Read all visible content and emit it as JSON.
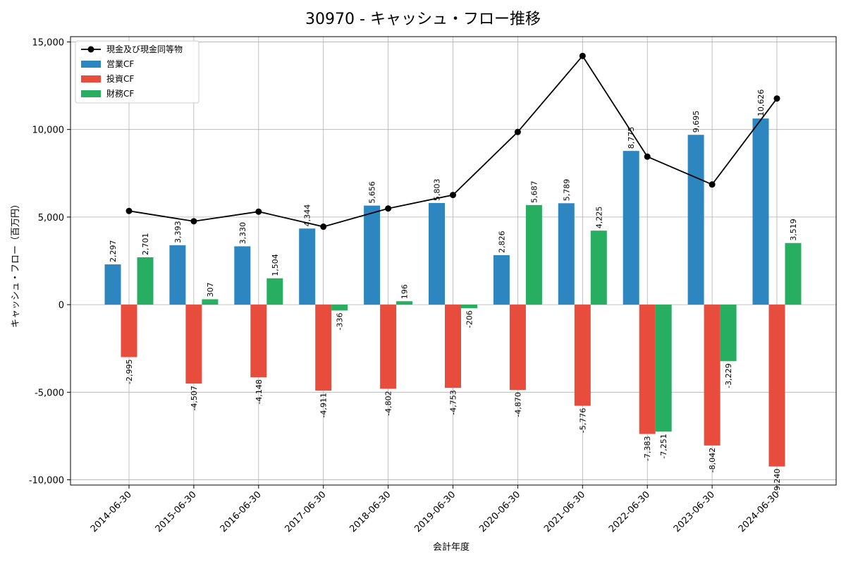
{
  "chart_data": {
    "type": "bar",
    "title": "30970 - キャッシュ・フロー推移",
    "xlabel": "会計年度",
    "ylabel": "キャッシュ・フロー（百万円）",
    "ylim": [
      -10300,
      15300
    ],
    "yticks": [
      -10000,
      -5000,
      0,
      5000,
      10000,
      15000
    ],
    "ytick_labels": [
      "-10,000",
      "-5,000",
      "0",
      "5,000",
      "10,000",
      "15,000"
    ],
    "grid": true,
    "legend_position": "top-left",
    "categories": [
      "2014-06-30",
      "2015-06-30",
      "2016-06-30",
      "2017-06-30",
      "2018-06-30",
      "2019-06-30",
      "2020-06-30",
      "2021-06-30",
      "2022-06-30",
      "2023-06-30",
      "2024-06-30"
    ],
    "series": [
      {
        "name": "営業CF",
        "kind": "bar",
        "color": "#2e86c1",
        "values": [
          2297,
          3393,
          3330,
          4344,
          5656,
          5803,
          2826,
          5789,
          8775,
          9695,
          10626
        ],
        "labels": [
          "2,297",
          "3,393",
          "3,330",
          "4,344",
          "5,656",
          "5,803",
          "2,826",
          "5,789",
          "8,775",
          "9,695",
          "10,626"
        ]
      },
      {
        "name": "投資CF",
        "kind": "bar",
        "color": "#e74c3c",
        "values": [
          -2995,
          -4507,
          -4148,
          -4911,
          -4802,
          -4753,
          -4870,
          -5776,
          -7383,
          -8042,
          -9240
        ],
        "labels": [
          "-2,995",
          "-4,507",
          "-4,148",
          "-4,911",
          "-4,802",
          "-4,753",
          "-4,870",
          "-5,776",
          "-7,383",
          "-8,042",
          "-9,240"
        ]
      },
      {
        "name": "財務CF",
        "kind": "bar",
        "color": "#27ae60",
        "values": [
          2701,
          307,
          1504,
          -336,
          196,
          -206,
          5687,
          4225,
          -7251,
          -3229,
          3519
        ],
        "labels": [
          "2,701",
          "307",
          "1,504",
          "-336",
          "196",
          "-206",
          "5,687",
          "4,225",
          "-7,251",
          "-3,229",
          "3,519"
        ]
      },
      {
        "name": "現金及び現金同等物",
        "kind": "line",
        "color": "#000000",
        "values": [
          5350,
          4760,
          5310,
          4450,
          5490,
          6260,
          9860,
          14200,
          8450,
          6860,
          11770
        ]
      }
    ]
  }
}
